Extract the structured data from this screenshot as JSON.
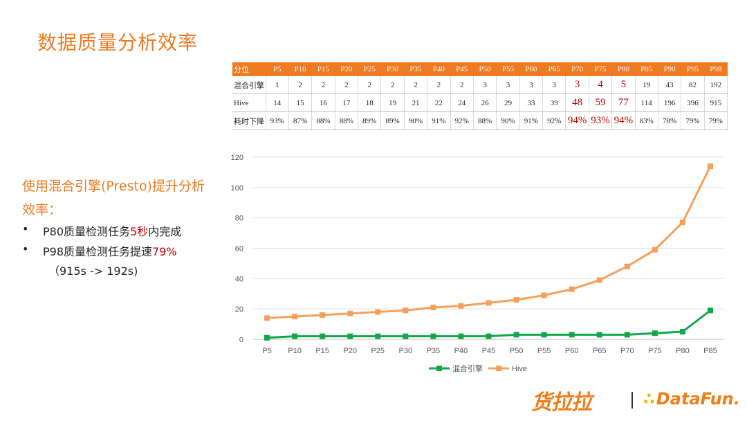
{
  "title": "数据质量分析效率",
  "table": {
    "header": [
      "分位",
      "P5",
      "P10",
      "P15",
      "P20",
      "P25",
      "P30",
      "P35",
      "P40",
      "P45",
      "P50",
      "P55",
      "P60",
      "P65",
      "P70",
      "P75",
      "P80",
      "P85",
      "P90",
      "P95",
      "P98"
    ],
    "rows": [
      {
        "label": "混合引擎",
        "values": [
          "1",
          "2",
          "2",
          "2",
          "2",
          "2",
          "2",
          "2",
          "2",
          "3",
          "3",
          "3",
          "3",
          "3",
          "4",
          "5",
          "19",
          "43",
          "82",
          "192"
        ]
      },
      {
        "label": "Hive",
        "values": [
          "14",
          "15",
          "16",
          "17",
          "18",
          "19",
          "21",
          "22",
          "24",
          "26",
          "29",
          "33",
          "39",
          "48",
          "59",
          "77",
          "114",
          "196",
          "396",
          "915"
        ]
      },
      {
        "label": "耗时下降",
        "values": [
          "93%",
          "87%",
          "88%",
          "88%",
          "89%",
          "89%",
          "90%",
          "91%",
          "92%",
          "88%",
          "90%",
          "91%",
          "92%",
          "94%",
          "93%",
          "94%",
          "83%",
          "78%",
          "79%",
          "79%"
        ]
      }
    ],
    "highlight_columns": [
      "P70",
      "P75",
      "P80"
    ],
    "highlight_color": "#c00000",
    "header_color": "#ee7a22"
  },
  "left": {
    "heading": "使用混合引擎(Presto)提升分析效率：",
    "bullet_char": "•",
    "bullets": [
      {
        "pre": "P80质量检测任务",
        "em": "5秒",
        "post": "内完成"
      },
      {
        "pre": "P98质量检测任务提速",
        "em": "79%",
        "post": ""
      }
    ],
    "sub": "（915s -> 192s)"
  },
  "chart_data": {
    "type": "line",
    "categories": [
      "P5",
      "P10",
      "P15",
      "P20",
      "P25",
      "P30",
      "P35",
      "P40",
      "P45",
      "P50",
      "P55",
      "P60",
      "P65",
      "P70",
      "P75",
      "P80",
      "P85"
    ],
    "series": [
      {
        "name": "混合引擎",
        "color": "#11a84b",
        "values": [
          1,
          2,
          2,
          2,
          2,
          2,
          2,
          2,
          2,
          3,
          3,
          3,
          3,
          3,
          4,
          5,
          19
        ]
      },
      {
        "name": "Hive",
        "color": "#f5a05a",
        "values": [
          14,
          15,
          16,
          17,
          18,
          19,
          21,
          22,
          24,
          26,
          29,
          33,
          39,
          48,
          59,
          77,
          114
        ]
      }
    ],
    "ylim": [
      0,
      120
    ],
    "yticks": [
      0,
      20,
      40,
      60,
      80,
      100,
      120
    ],
    "grid": true,
    "legend": "bottom"
  },
  "footer": {
    "logo1": "货拉拉",
    "logo2_dots": "∴",
    "logo2": "DataFun."
  }
}
